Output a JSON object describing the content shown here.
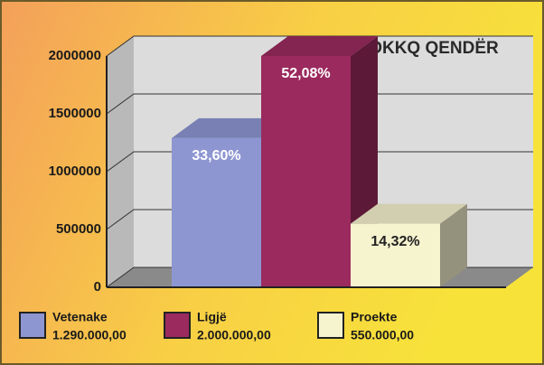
{
  "chart_data": {
    "type": "bar",
    "title": "OKKQ QENDËR",
    "categories": [
      "Vetenake",
      "Ligjë",
      "Proekte"
    ],
    "values": [
      1290000,
      2000000,
      550000
    ],
    "value_labels": [
      "1.290.000,00",
      "2.000.000,00",
      "550.000,00"
    ],
    "shares": [
      33.6,
      52.08,
      14.32
    ],
    "share_labels": [
      "33,60%",
      "52,08%",
      "14,32%"
    ],
    "colors": [
      "#8e96d2",
      "#9b2a5e",
      "#f6f3cf"
    ],
    "ylim": [
      0,
      2000000
    ],
    "yticks": [
      0,
      500000,
      1000000,
      1500000,
      2000000
    ],
    "grid": true
  }
}
